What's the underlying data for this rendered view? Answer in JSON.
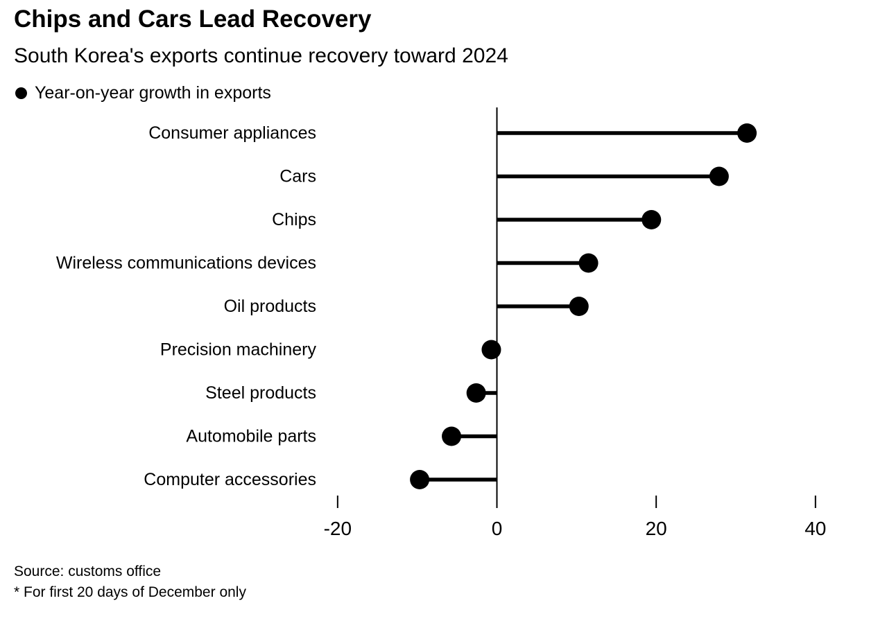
{
  "page": {
    "title": "Chips and Cars Lead Recovery",
    "subtitle": "South Korea's exports continue recovery toward 2024",
    "legend": {
      "marker_icon": "filled-circle",
      "label": "Year-on-year growth in exports"
    },
    "source": "Source: customs office",
    "footnote": "* For first 20 days of December only"
  },
  "colors": {
    "foreground": "#000000",
    "background": "#ffffff"
  },
  "chart_data": {
    "type": "bar",
    "subtype": "horizontal-lollipop",
    "title": "Chips and Cars Lead Recovery",
    "subtitle": "South Korea's exports continue recovery toward 2024",
    "series_name": "Year-on-year growth in exports",
    "categories": [
      "Consumer appliances",
      "Cars",
      "Chips",
      "Wireless communications devices",
      "Oil products",
      "Precision machinery",
      "Steel products",
      "Automobile parts",
      "Computer accessories"
    ],
    "values": [
      31.4,
      27.9,
      19.4,
      11.5,
      10.3,
      -0.7,
      -2.6,
      -5.7,
      -9.7
    ],
    "unit": "percent",
    "x_ticks": [
      -20,
      0,
      20,
      40
    ],
    "xlim": [
      -26,
      48
    ],
    "xlabel": "",
    "ylabel": "",
    "grid": false,
    "legend_position": "top-left",
    "source": "Source: customs office",
    "footnote": "* For first 20 days of December only"
  }
}
